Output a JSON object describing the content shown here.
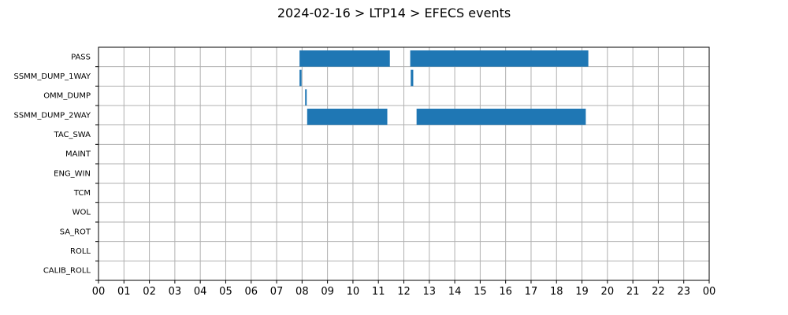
{
  "chart_data": {
    "type": "bar",
    "orientation": "horizontal",
    "title": "2024-02-16 > LTP14 > EFECS events",
    "xlabel": "",
    "ylabel": "",
    "grid": true,
    "xlim": [
      0,
      24
    ],
    "x_tick_values": [
      0,
      1,
      2,
      3,
      4,
      5,
      6,
      7,
      8,
      9,
      10,
      11,
      12,
      13,
      14,
      15,
      16,
      17,
      18,
      19,
      20,
      21,
      22,
      23,
      24
    ],
    "x_tick_labels": [
      "00",
      "01",
      "02",
      "03",
      "04",
      "05",
      "06",
      "07",
      "08",
      "09",
      "10",
      "11",
      "12",
      "13",
      "14",
      "15",
      "16",
      "17",
      "18",
      "19",
      "20",
      "21",
      "22",
      "23",
      "00"
    ],
    "categories": [
      "PASS",
      "SSMM_DUMP_1WAY",
      "OMM_DUMP",
      "SSMM_DUMP_2WAY",
      "TAC_SWA",
      "MAINT",
      "ENG_WIN",
      "TCM",
      "WOL",
      "SA_ROT",
      "ROLL",
      "CALIB_ROLL"
    ],
    "bar_color": "#1f77b4",
    "events": [
      {
        "category": "PASS",
        "start": 7.9,
        "end": 11.45
      },
      {
        "category": "PASS",
        "start": 12.25,
        "end": 19.25
      },
      {
        "category": "SSMM_DUMP_1WAY",
        "start": 7.9,
        "end": 7.98
      },
      {
        "category": "SSMM_DUMP_1WAY",
        "start": 12.27,
        "end": 12.37
      },
      {
        "category": "OMM_DUMP",
        "start": 8.12,
        "end": 8.18
      },
      {
        "category": "SSMM_DUMP_2WAY",
        "start": 8.2,
        "end": 11.35
      },
      {
        "category": "SSMM_DUMP_2WAY",
        "start": 12.5,
        "end": 19.15
      }
    ]
  }
}
